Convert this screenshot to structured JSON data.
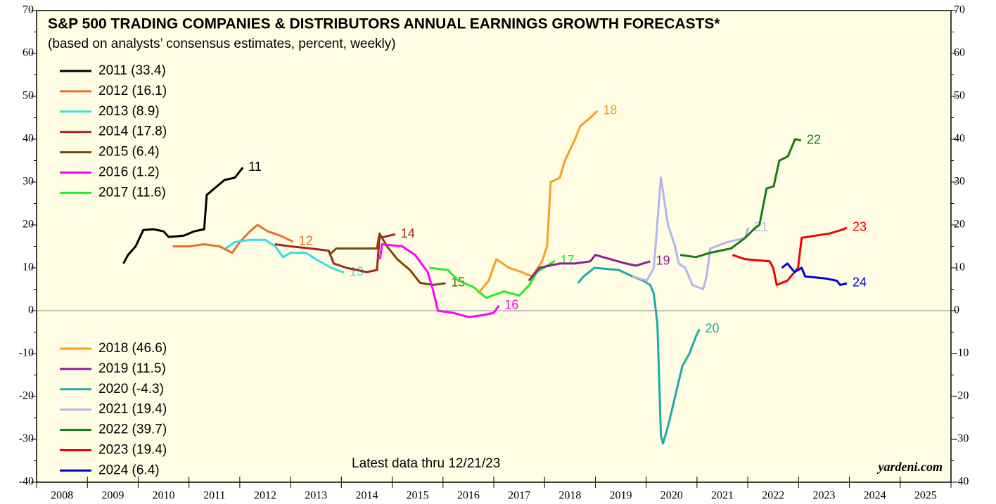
{
  "chart_data": {
    "type": "line",
    "title": "S&P 500 TRADING COMPANIES & DISTRIBUTORS ANNUAL EARNINGS GROWTH FORECASTS*",
    "subtitle": "(based on analysts’ consensus estimates, percent, weekly)",
    "annotation": "Latest data thru 12/21/23",
    "source": "yardeni.com",
    "xlim": [
      2008,
      2026
    ],
    "xticks": [
      {
        "value": 2008.5,
        "label": "2008"
      },
      {
        "value": 2009.5,
        "label": "2009"
      },
      {
        "value": 2010.5,
        "label": "2010"
      },
      {
        "value": 2011.5,
        "label": "2011"
      },
      {
        "value": 2012.5,
        "label": "2012"
      },
      {
        "value": 2013.5,
        "label": "2013"
      },
      {
        "value": 2014.5,
        "label": "2014"
      },
      {
        "value": 2015.5,
        "label": "2015"
      },
      {
        "value": 2016.5,
        "label": "2016"
      },
      {
        "value": 2017.5,
        "label": "2017"
      },
      {
        "value": 2018.5,
        "label": "2018"
      },
      {
        "value": 2019.5,
        "label": "2019"
      },
      {
        "value": 2020.5,
        "label": "2020"
      },
      {
        "value": 2021.5,
        "label": "2021"
      },
      {
        "value": 2022.5,
        "label": "2022"
      },
      {
        "value": 2023.5,
        "label": "2023"
      },
      {
        "value": 2024.5,
        "label": "2024"
      },
      {
        "value": 2025.5,
        "label": "2025"
      }
    ],
    "x_minor_ticks": [
      2008,
      2009,
      2010,
      2011,
      2012,
      2013,
      2014,
      2015,
      2016,
      2017,
      2018,
      2019,
      2020,
      2021,
      2022,
      2023,
      2024,
      2025,
      2026
    ],
    "ylim": [
      -40,
      70
    ],
    "yticks": [
      -40,
      -30,
      -20,
      -10,
      0,
      10,
      20,
      30,
      40,
      50,
      60,
      70
    ],
    "y_minor_ticks": [
      -35,
      -25,
      -15,
      -5,
      5,
      15,
      25,
      35,
      45,
      55,
      65
    ],
    "zero_line": true,
    "series": [
      {
        "name": "2011 (33.4)",
        "label": "11",
        "color": "#000000",
        "x": [
          2009.71,
          2009.8,
          2009.95,
          2010.1,
          2010.3,
          2010.5,
          2010.6,
          2010.9,
          2011.1,
          2011.3,
          2011.35,
          2011.55,
          2011.7,
          2011.9,
          2012.0,
          2012.06
        ],
        "y": [
          11,
          13,
          15,
          18.8,
          19,
          18.5,
          17.2,
          17.5,
          18.5,
          19,
          27,
          29,
          30.5,
          31,
          32.5,
          33.4
        ]
      },
      {
        "name": "2012 (16.1)",
        "label": "12",
        "color": "#e8702a",
        "x": [
          2010.68,
          2011.0,
          2011.3,
          2011.6,
          2011.85,
          2012.0,
          2012.2,
          2012.35,
          2012.55,
          2012.8,
          2013.05
        ],
        "y": [
          15,
          15,
          15.5,
          15,
          13.5,
          16,
          18.5,
          20,
          18.5,
          17.5,
          16.1
        ]
      },
      {
        "name": "2013 (8.9)",
        "label": "13",
        "color": "#33e0e8",
        "x": [
          2011.72,
          2011.9,
          2012.2,
          2012.5,
          2012.7,
          2012.85,
          2013.0,
          2013.3,
          2013.5,
          2013.8,
          2014.05
        ],
        "y": [
          14.5,
          16,
          16.5,
          16.5,
          15,
          12.5,
          13.5,
          13.5,
          12,
          10,
          8.9
        ]
      },
      {
        "name": "2014 (17.8)",
        "label": "14",
        "color": "#a0281e",
        "x": [
          2012.69,
          2013.0,
          2013.4,
          2013.75,
          2013.85,
          2014.1,
          2014.5,
          2014.7,
          2014.75,
          2015.06
        ],
        "y": [
          15.5,
          15,
          14.5,
          14,
          11,
          10,
          9,
          9.5,
          17,
          17.8
        ]
      },
      {
        "name": "2015 (6.4)",
        "label": "15",
        "color": "#7a4a00",
        "x": [
          2013.76,
          2013.9,
          2014.4,
          2014.7,
          2014.75,
          2014.9,
          2015.1,
          2015.35,
          2015.55,
          2015.8,
          2016.05
        ],
        "y": [
          13,
          14.5,
          14.5,
          14.5,
          18,
          15,
          12,
          9.5,
          6.5,
          6,
          6.4
        ]
      },
      {
        "name": "2016 (1.2)",
        "label": "16",
        "color": "#ff00ff",
        "x": [
          2014.76,
          2014.8,
          2015.2,
          2015.45,
          2015.7,
          2015.8,
          2015.9,
          2016.2,
          2016.5,
          2016.8,
          2017.0,
          2017.1
        ],
        "y": [
          12,
          15.5,
          15,
          13,
          9,
          5,
          0,
          -0.5,
          -1.5,
          -1,
          -0.5,
          1.2
        ]
      },
      {
        "name": "2017 (11.6)",
        "label": "17",
        "color": "#22ee22",
        "x": [
          2015.73,
          2016.1,
          2016.3,
          2016.6,
          2016.85,
          2017.2,
          2017.5,
          2017.7,
          2017.85,
          2018.2
        ],
        "y": [
          10,
          9.5,
          7,
          5.5,
          3,
          4.5,
          3.5,
          6,
          9,
          11.6
        ]
      },
      {
        "name": "2018 (46.6)",
        "label": "18",
        "color": "#f5a01e",
        "x": [
          2016.69,
          2016.9,
          2017.05,
          2017.3,
          2017.55,
          2017.75,
          2017.95,
          2018.05,
          2018.12,
          2018.3,
          2018.4,
          2018.6,
          2018.7,
          2018.9,
          2019.04
        ],
        "y": [
          4,
          7,
          12,
          10,
          9,
          8,
          11.5,
          15,
          30,
          31,
          35,
          40,
          43,
          45,
          46.6
        ]
      },
      {
        "name": "2019 (11.5)",
        "label": "19",
        "color": "#8c1e96",
        "x": [
          2017.69,
          2017.9,
          2018.3,
          2018.6,
          2018.9,
          2019.0,
          2019.3,
          2019.6,
          2019.8,
          2020.08
        ],
        "y": [
          7,
          10,
          11,
          11,
          11.5,
          13,
          12,
          11,
          10.5,
          11.5
        ]
      },
      {
        "name": "2020 (-4.3)",
        "label": "20",
        "color": "#1eaaaa",
        "x": [
          2018.66,
          2018.77,
          2018.98,
          2019.46,
          2019.73,
          2019.94,
          2020.08,
          2020.15,
          2020.22,
          2020.29,
          2020.33,
          2020.43,
          2020.57,
          2020.71,
          2020.85,
          2020.98,
          2021.05
        ],
        "y": [
          6.5,
          8,
          10,
          9.5,
          8,
          7,
          6,
          4,
          -3,
          -29,
          -31,
          -27,
          -20,
          -13,
          -10,
          -6,
          -4.3
        ]
      },
      {
        "name": "2021 (19.4)",
        "label": "21",
        "color": "#b4b4f0",
        "x": [
          2019.73,
          2020.01,
          2020.15,
          2020.29,
          2020.43,
          2020.57,
          2020.64,
          2020.77,
          2020.91,
          2021.12,
          2021.19,
          2021.26,
          2021.6,
          2021.95,
          2022.01
        ],
        "y": [
          8,
          7,
          10,
          31,
          20,
          15,
          11,
          10,
          6,
          5,
          8,
          14.5,
          16,
          17,
          19.4
        ]
      },
      {
        "name": "2022 (39.7)",
        "label": "22",
        "color": "#157d15",
        "x": [
          2020.67,
          2020.98,
          2021.26,
          2021.67,
          2021.95,
          2022.16,
          2022.23,
          2022.37,
          2022.51,
          2022.62,
          2022.79,
          2022.93,
          2023.05
        ],
        "y": [
          13,
          12.5,
          13.5,
          14.5,
          17,
          19.5,
          20,
          28.5,
          29,
          35,
          36,
          40,
          39.7
        ]
      },
      {
        "name": "2023 (19.4)",
        "label": "23",
        "color": "#ee0000",
        "x": [
          2021.7,
          2021.95,
          2022.43,
          2022.5,
          2022.57,
          2022.78,
          2022.92,
          2022.99,
          2023.06,
          2023.61,
          2023.89,
          2023.95
        ],
        "y": [
          13,
          12,
          11.5,
          10,
          6,
          7,
          9,
          10,
          17,
          18,
          19,
          19.4
        ]
      },
      {
        "name": "2024 (6.4)",
        "label": "24",
        "color": "#0000dd",
        "x": [
          2022.67,
          2022.78,
          2022.92,
          2023.06,
          2023.13,
          2023.54,
          2023.75,
          2023.82,
          2023.95
        ],
        "y": [
          10,
          11,
          9,
          10,
          8,
          7.5,
          7,
          6,
          6.4
        ]
      }
    ]
  }
}
